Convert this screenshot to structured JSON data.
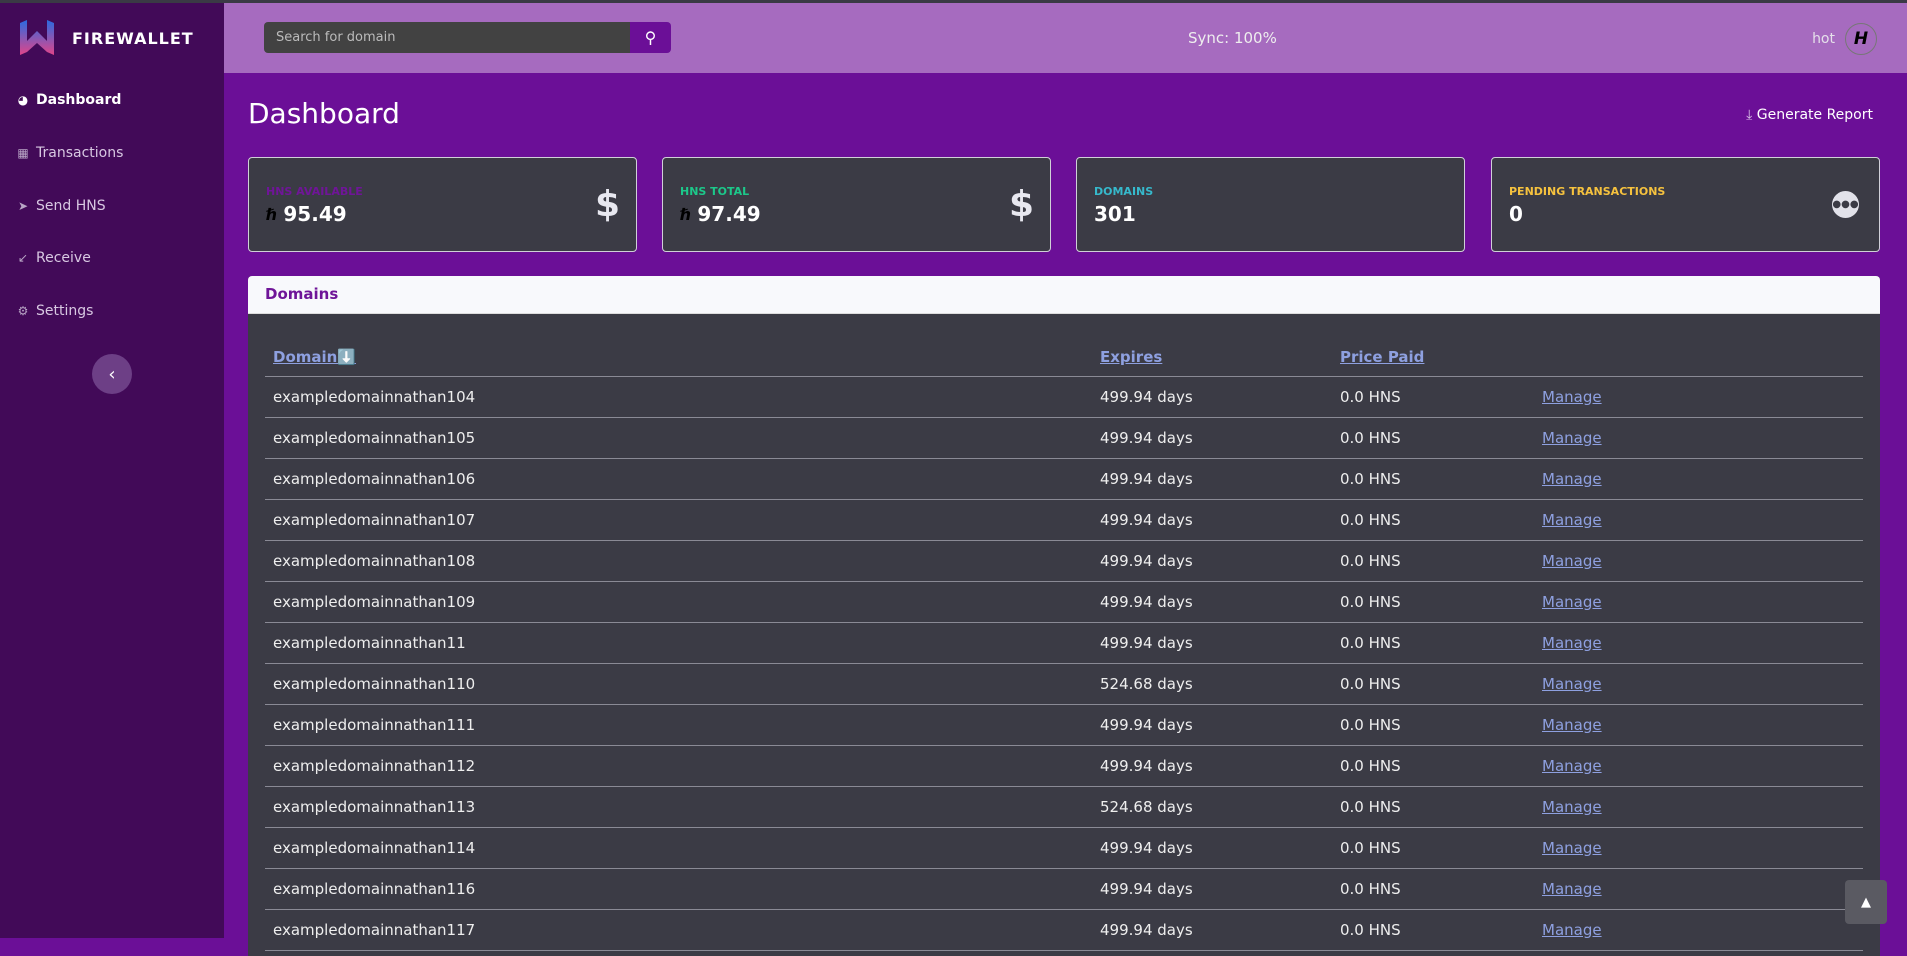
{
  "brand": {
    "name": "FIREWALLET"
  },
  "sidebar": {
    "items": [
      {
        "label": "Dashboard",
        "icon": "gauge-icon"
      },
      {
        "label": "Transactions",
        "icon": "table-icon"
      },
      {
        "label": "Send HNS",
        "icon": "send-icon"
      },
      {
        "label": "Receive",
        "icon": "arrow-down-left-icon"
      },
      {
        "label": "Settings",
        "icon": "gear-icon"
      }
    ]
  },
  "topbar": {
    "search_placeholder": "Search for domain",
    "sync": "Sync: 100%",
    "user": "hot"
  },
  "page": {
    "title": "Dashboard",
    "report": "Generate Report"
  },
  "cards": [
    {
      "label": "HNS AVAILABLE",
      "value": "95.49",
      "color": "#6f1598"
    },
    {
      "label": "HNS TOTAL",
      "value": "97.49",
      "color": "#1cc88a"
    },
    {
      "label": "DOMAINS",
      "value": "301",
      "color": "#36b9cc"
    },
    {
      "label": "PENDING TRANSACTIONS",
      "value": "0",
      "color": "#f6c23e"
    }
  ],
  "domains": {
    "title": "Domains",
    "headers": [
      "Domain⬇️",
      "Expires",
      "Price Paid"
    ],
    "rows": [
      {
        "domain": "exampledomainnathan104",
        "expires": "499.94 days",
        "price": "0.0 HNS",
        "action": "Manage"
      },
      {
        "domain": "exampledomainnathan105",
        "expires": "499.94 days",
        "price": "0.0 HNS",
        "action": "Manage"
      },
      {
        "domain": "exampledomainnathan106",
        "expires": "499.94 days",
        "price": "0.0 HNS",
        "action": "Manage"
      },
      {
        "domain": "exampledomainnathan107",
        "expires": "499.94 days",
        "price": "0.0 HNS",
        "action": "Manage"
      },
      {
        "domain": "exampledomainnathan108",
        "expires": "499.94 days",
        "price": "0.0 HNS",
        "action": "Manage"
      },
      {
        "domain": "exampledomainnathan109",
        "expires": "499.94 days",
        "price": "0.0 HNS",
        "action": "Manage"
      },
      {
        "domain": "exampledomainnathan11",
        "expires": "499.94 days",
        "price": "0.0 HNS",
        "action": "Manage"
      },
      {
        "domain": "exampledomainnathan110",
        "expires": "524.68 days",
        "price": "0.0 HNS",
        "action": "Manage"
      },
      {
        "domain": "exampledomainnathan111",
        "expires": "499.94 days",
        "price": "0.0 HNS",
        "action": "Manage"
      },
      {
        "domain": "exampledomainnathan112",
        "expires": "499.94 days",
        "price": "0.0 HNS",
        "action": "Manage"
      },
      {
        "domain": "exampledomainnathan113",
        "expires": "524.68 days",
        "price": "0.0 HNS",
        "action": "Manage"
      },
      {
        "domain": "exampledomainnathan114",
        "expires": "499.94 days",
        "price": "0.0 HNS",
        "action": "Manage"
      },
      {
        "domain": "exampledomainnathan116",
        "expires": "499.94 days",
        "price": "0.0 HNS",
        "action": "Manage"
      },
      {
        "domain": "exampledomainnathan117",
        "expires": "499.94 days",
        "price": "0.0 HNS",
        "action": "Manage"
      }
    ]
  }
}
